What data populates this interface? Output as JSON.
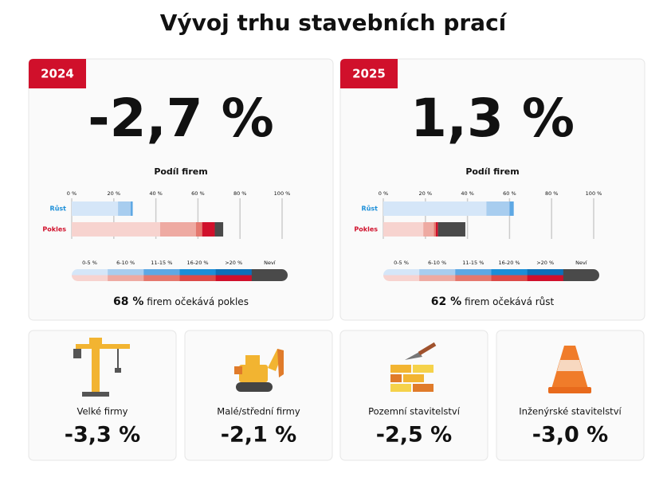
{
  "title": "Vývoj trhu stavebních prací",
  "xlim": [
    0,
    100
  ],
  "xticks": [
    {
      "value": 0,
      "label": "0 %"
    },
    {
      "value": 20,
      "label": "20 %"
    },
    {
      "value": 40,
      "label": "40 %"
    },
    {
      "value": 60,
      "label": "60 %"
    },
    {
      "value": 80,
      "label": "80 %"
    },
    {
      "value": 100,
      "label": "100 %"
    }
  ],
  "legend": [
    "0-5 %",
    "6-10 %",
    "11-15 %",
    "16-20 %",
    ">20 %",
    "Neví"
  ],
  "panels": [
    {
      "year": "2024",
      "headline": "-2,7 %",
      "chart_title": "Podíl firem",
      "rows": [
        {
          "name": "Růst",
          "color": "#1b8ed8",
          "values": [
            22,
            6,
            1,
            0,
            0,
            0
          ]
        },
        {
          "name": "Pokles",
          "color": "#d0102b",
          "values": [
            42,
            17,
            3,
            0,
            6,
            4
          ]
        }
      ],
      "summary_value": "68 %",
      "summary_text": "firem očekává pokles"
    },
    {
      "year": "2025",
      "headline": "1,3 %",
      "chart_title": "Podíl firem",
      "rows": [
        {
          "name": "Růst",
          "color": "#1b8ed8",
          "values": [
            49,
            11,
            2,
            0,
            0,
            0
          ]
        },
        {
          "name": "Pokles",
          "color": "#d0102b",
          "values": [
            19,
            5,
            1,
            0,
            1,
            13
          ]
        }
      ],
      "summary_value": "62 %",
      "summary_text": "firem očekává růst"
    }
  ],
  "cards": [
    {
      "label": "Velké firmy",
      "value": "-3,3 %"
    },
    {
      "label": "Malé/střední firmy",
      "value": "-2,1 %"
    },
    {
      "label": "Pozemní stavitelství",
      "value": "-2,5 %"
    },
    {
      "label": "Inženýrské stavitelství",
      "value": "-3,0 %"
    }
  ]
}
